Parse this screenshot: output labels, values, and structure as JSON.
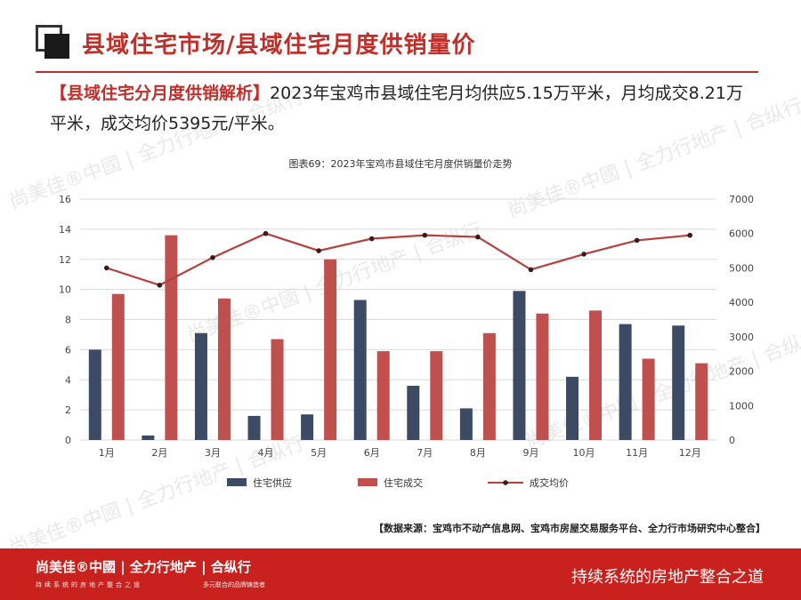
{
  "header": {
    "title": "县域住宅市场/县域住宅月度供销量价"
  },
  "intro": {
    "tag": "【县域住宅分月度供销解析】",
    "text": "2023年宝鸡市县域住宅月均供应5.15万平米，月均成交8.21万平米，成交均价5395元/平米。"
  },
  "chart_title": "图表69：2023年宝鸡市县域住宅月度供销量价走势",
  "chart_data": {
    "type": "bar",
    "title": "图表69：2023年宝鸡市县域住宅月度供销量价走势",
    "categories": [
      "1月",
      "2月",
      "3月",
      "4月",
      "5月",
      "6月",
      "7月",
      "8月",
      "9月",
      "10月",
      "11月",
      "12月"
    ],
    "series": [
      {
        "name": "住宅供应",
        "type": "bar",
        "axis": "left",
        "color": "#3d4a63",
        "values": [
          6.0,
          0.3,
          7.1,
          1.6,
          1.7,
          9.3,
          3.6,
          2.1,
          9.9,
          4.2,
          7.7,
          7.6
        ]
      },
      {
        "name": "住宅成交",
        "type": "bar",
        "axis": "left",
        "color": "#c0504d",
        "values": [
          9.7,
          13.6,
          9.4,
          6.7,
          12.0,
          5.9,
          5.9,
          7.1,
          8.4,
          8.6,
          5.4,
          5.1
        ]
      },
      {
        "name": "成交均价",
        "type": "line",
        "axis": "right",
        "color": "#b5413d",
        "values": [
          5000,
          4500,
          5300,
          6000,
          5500,
          5850,
          5950,
          5900,
          4950,
          5400,
          5800,
          5950
        ]
      }
    ],
    "ylim_left": [
      0,
      16
    ],
    "yticks_left": [
      "0",
      "2",
      "4",
      "6",
      "8",
      "10",
      "12",
      "14",
      "16"
    ],
    "ylim_right": [
      0,
      7000
    ],
    "yticks_right": [
      "0",
      "1000",
      "2000",
      "3000",
      "4000",
      "5000",
      "6000",
      "7000"
    ],
    "grid": true,
    "legend": "bottom"
  },
  "source": "【数据来源：宝鸡市不动产信息网、宝鸡市房屋交易服务平台、全力行市场研究中心整合】",
  "footer": {
    "brand": "尚美佳®中國 | 全力行地产 | 合纵行",
    "brand_sub": "持续系统的房地产整合之道",
    "brand_sub2": "多元联合的品牌铸造者",
    "slogan": "持续系统的房地产整合之道"
  },
  "watermark": "尚美佳®中國 | 全力行地产 | 合纵行",
  "colors": {
    "accent": "#c0302b",
    "supply": "#3d4a63",
    "deal": "#c0504d",
    "price": "#b5413d",
    "footer": "#c9211e"
  }
}
